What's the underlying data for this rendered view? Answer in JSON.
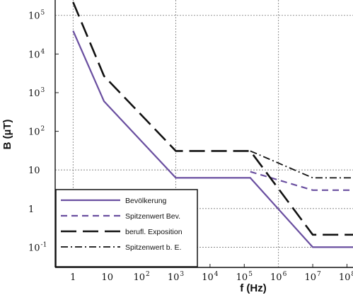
{
  "chart_data": {
    "type": "line",
    "title": "",
    "xlabel": "f (Hz)",
    "ylabel": "B (µT)",
    "xscale": "log",
    "yscale": "log",
    "xlim": [
      0.3,
      150000000
    ],
    "ylim": [
      0.03,
      250000
    ],
    "grid": true,
    "legend_position": "bottom-left",
    "x_ticks": [
      {
        "value": 1,
        "base": "1",
        "exp": ""
      },
      {
        "value": 10,
        "base": "10",
        "exp": ""
      },
      {
        "value": 100,
        "base": "10",
        "exp": "2"
      },
      {
        "value": 1000,
        "base": "10",
        "exp": "3"
      },
      {
        "value": 10000,
        "base": "10",
        "exp": "4"
      },
      {
        "value": 100000,
        "base": "10",
        "exp": "5"
      },
      {
        "value": 1000000,
        "base": "10",
        "exp": "6"
      },
      {
        "value": 10000000,
        "base": "10",
        "exp": "7"
      },
      {
        "value": 100000000,
        "base": "10",
        "exp": "8"
      }
    ],
    "y_ticks": [
      {
        "value": 0.1,
        "base": "10",
        "exp": "-1"
      },
      {
        "value": 1,
        "base": "1",
        "exp": ""
      },
      {
        "value": 10,
        "base": "10",
        "exp": ""
      },
      {
        "value": 100,
        "base": "10",
        "exp": "2"
      },
      {
        "value": 1000,
        "base": "10",
        "exp": "3"
      },
      {
        "value": 10000,
        "base": "10",
        "exp": "4"
      },
      {
        "value": 100000,
        "base": "10",
        "exp": "5"
      }
    ],
    "series": [
      {
        "name": "Bevölkerung",
        "color": "#6a4fa0",
        "style": "solid",
        "x": [
          1,
          8,
          1000,
          150000,
          10000000,
          150000000
        ],
        "y": [
          40000,
          600,
          6.25,
          6.25,
          0.1,
          0.1
        ]
      },
      {
        "name": "Spitzenwert Bev.",
        "color": "#6a4fa0",
        "style": "dashed",
        "x": [
          150000,
          10000000,
          150000000
        ],
        "y": [
          9,
          3,
          3
        ]
      },
      {
        "name": "berufl. Exposition",
        "color": "#111111",
        "style": "longdash",
        "x": [
          1,
          8,
          1000,
          150000,
          10000000,
          150000000
        ],
        "y": [
          220000,
          2700,
          31,
          31,
          0.21,
          0.21
        ]
      },
      {
        "name": "Spitzenwert b. E.",
        "color": "#111111",
        "style": "dashdot",
        "x": [
          150000,
          10000000,
          150000000
        ],
        "y": [
          31,
          6.25,
          6.25
        ]
      }
    ]
  }
}
